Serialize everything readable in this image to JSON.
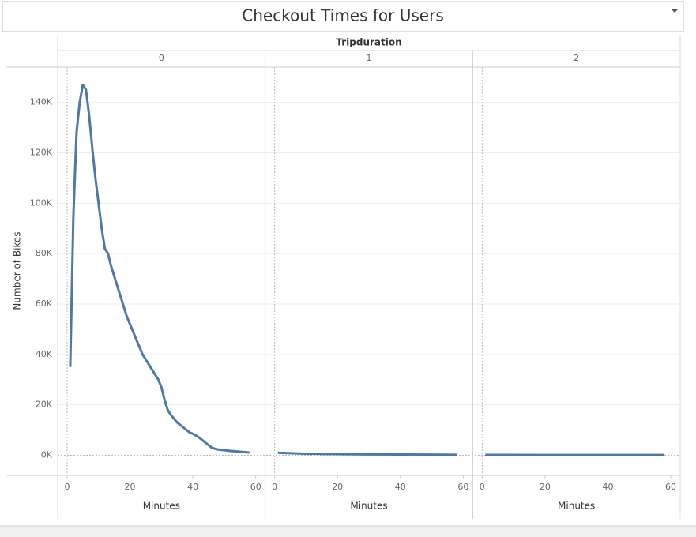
{
  "chart_data": {
    "type": "line",
    "title": "Checkout Times for Users",
    "column_header": "Tripduration",
    "y_label": "Number of Bikes",
    "x_label": "Minutes",
    "color": "#4e79a7",
    "grid": true,
    "ylim": [
      -8000,
      154000
    ],
    "yticks": [
      {
        "value": 0,
        "label": "0K"
      },
      {
        "value": 20000,
        "label": "20K"
      },
      {
        "value": 40000,
        "label": "40K"
      },
      {
        "value": 60000,
        "label": "60K"
      },
      {
        "value": 80000,
        "label": "80K"
      },
      {
        "value": 100000,
        "label": "100K"
      },
      {
        "value": 120000,
        "label": "120K"
      },
      {
        "value": 140000,
        "label": "140K"
      }
    ],
    "xlim": [
      -3,
      63
    ],
    "xticks": [
      0,
      20,
      40,
      60
    ],
    "panels": [
      {
        "name": "0",
        "x": [
          1,
          2,
          3,
          4,
          5,
          6,
          7,
          8,
          9,
          10,
          11,
          12,
          13,
          14,
          15,
          16,
          17,
          18,
          19,
          20,
          21,
          22,
          23,
          24,
          25,
          26,
          27,
          28,
          29,
          30,
          31,
          32,
          33,
          34,
          35,
          36,
          37,
          38,
          39,
          40,
          41,
          42,
          43,
          44,
          45,
          46,
          47,
          48,
          50,
          52,
          54,
          56,
          58
        ],
        "values": [
          35000,
          95000,
          128000,
          140000,
          147000,
          145000,
          135000,
          122000,
          110000,
          100000,
          90000,
          82000,
          80000,
          75000,
          71000,
          67000,
          63000,
          59000,
          55000,
          52000,
          49000,
          46000,
          43000,
          40000,
          38000,
          36000,
          34000,
          32000,
          30000,
          27000,
          22000,
          18000,
          16000,
          14500,
          13000,
          12000,
          11000,
          10000,
          9000,
          8500,
          7800,
          7000,
          6000,
          5000,
          4000,
          3000,
          2600,
          2300,
          2000,
          1700,
          1500,
          1300,
          1100
        ]
      },
      {
        "name": "1",
        "x": [
          1,
          5,
          10,
          20,
          30,
          40,
          50,
          58
        ],
        "values": [
          1000,
          800,
          600,
          450,
          350,
          300,
          250,
          200
        ]
      },
      {
        "name": "2",
        "x": [
          1,
          20,
          40,
          58
        ],
        "values": [
          150,
          120,
          110,
          100
        ]
      }
    ]
  }
}
